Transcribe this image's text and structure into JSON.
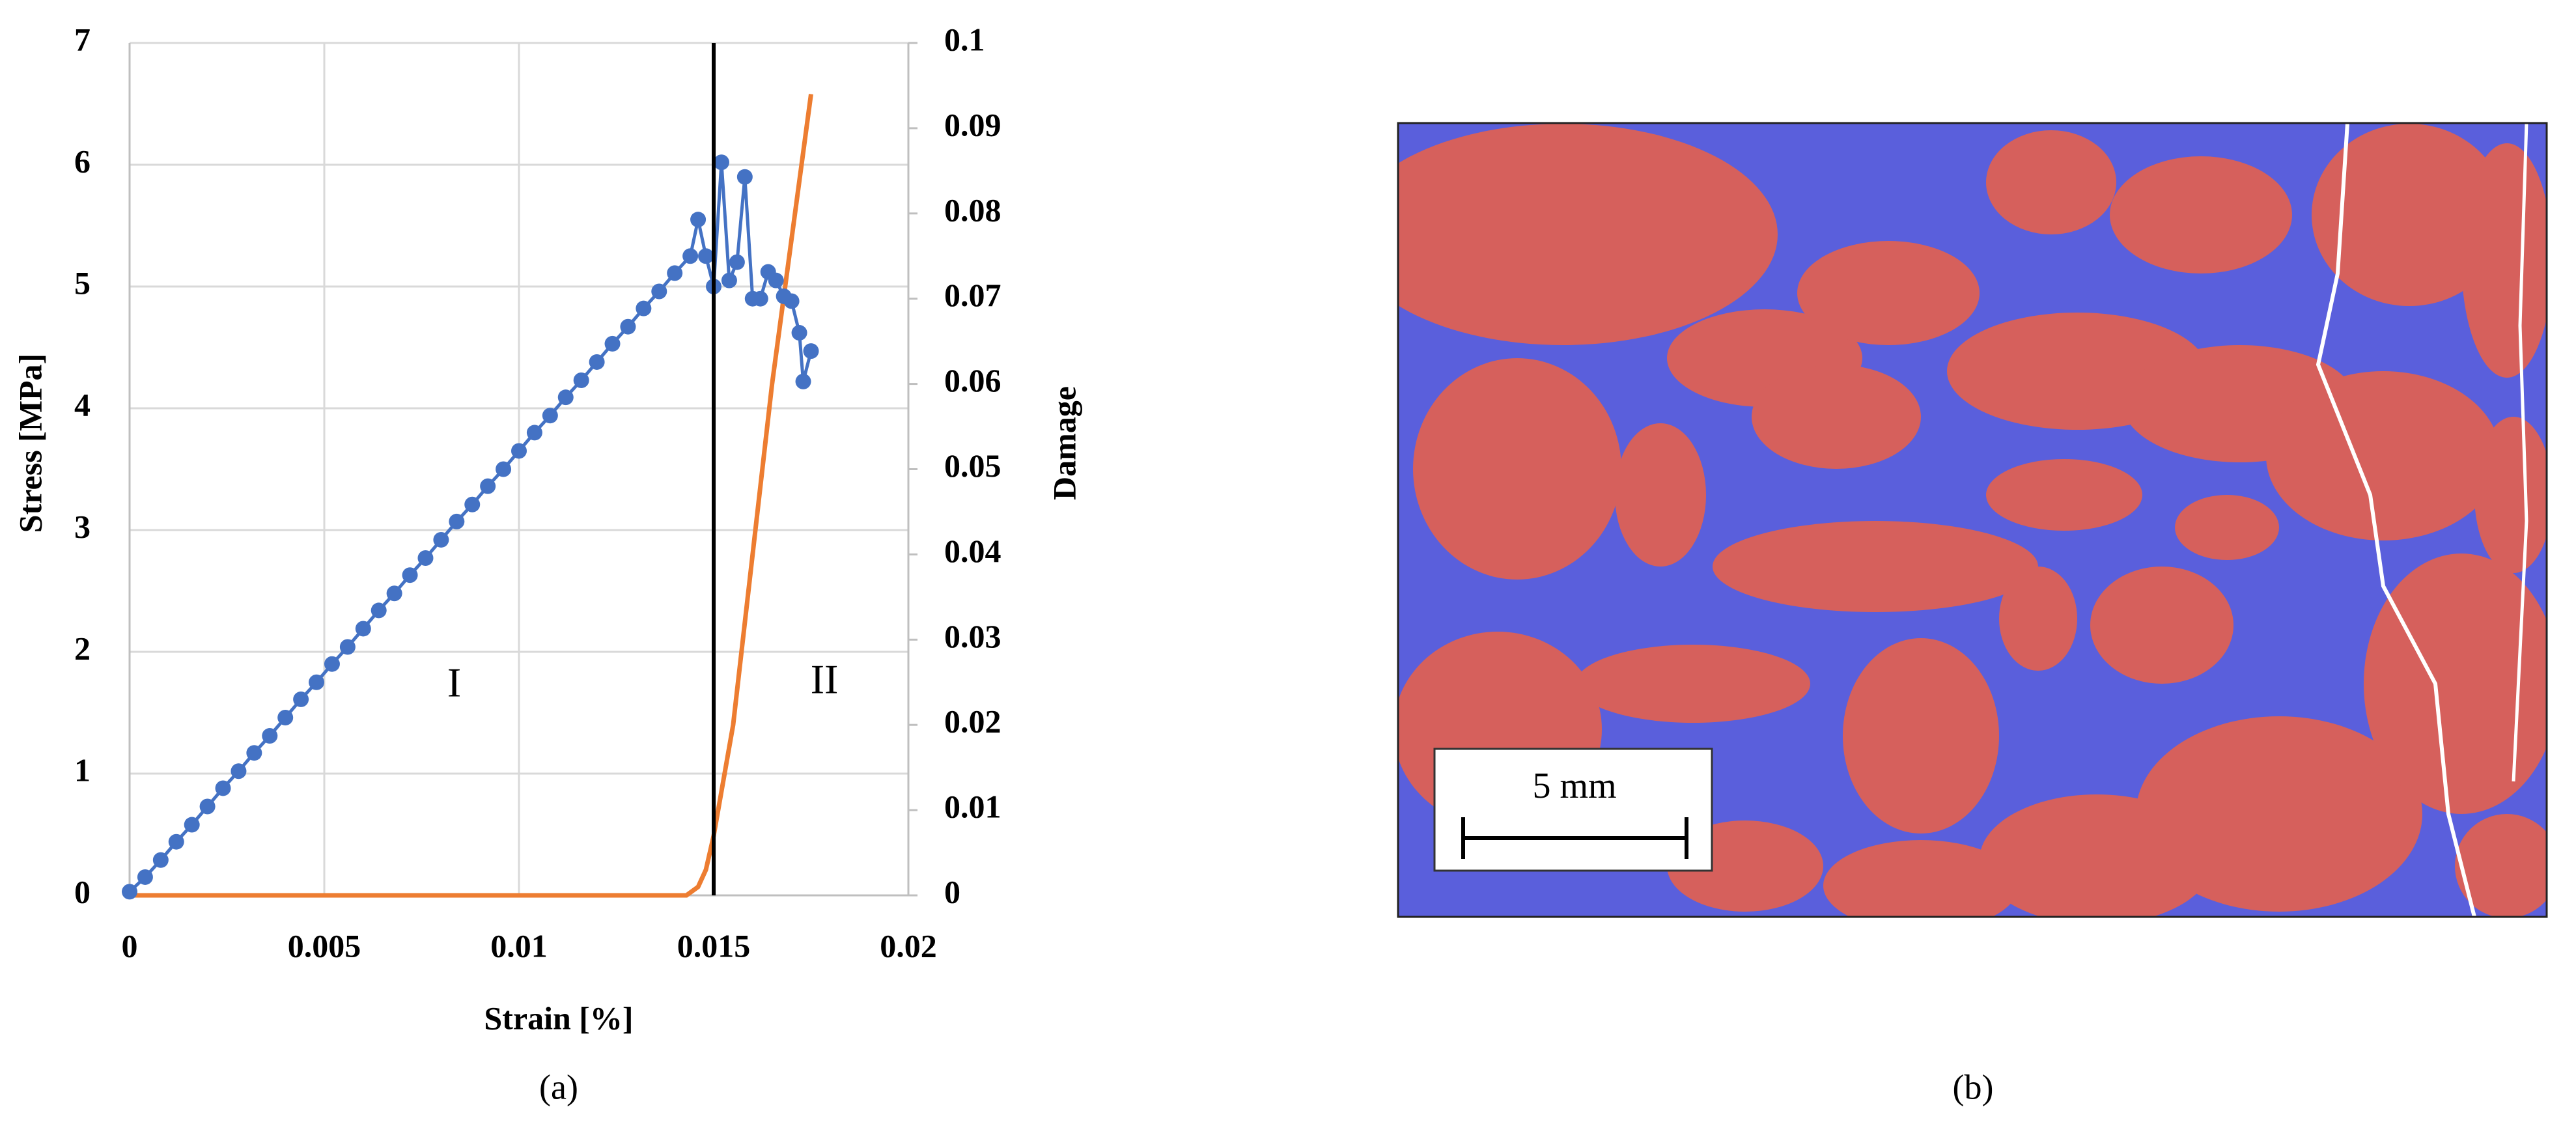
{
  "chart_data": {
    "type": "line",
    "xlabel": "Strain [%]",
    "ylabel": "Stress [MPa]",
    "y2label": "Damage",
    "xlim": [
      0,
      0.02
    ],
    "xticks": [
      0,
      0.005,
      0.01,
      0.015,
      0.02
    ],
    "ylim": [
      0,
      7
    ],
    "yticks": [
      0,
      1,
      2,
      3,
      4,
      5,
      6,
      7
    ],
    "y2lim": [
      0,
      0.1
    ],
    "y2ticks": [
      0,
      0.01,
      0.02,
      0.03,
      0.04,
      0.05,
      0.06,
      0.07,
      0.08,
      0.09,
      0.1
    ],
    "grid": true,
    "vline": 0.015,
    "annotations": [
      "I",
      "II"
    ],
    "series": [
      {
        "color": "#4472c4",
        "markers": true,
        "x": [
          0,
          0.0004,
          0.0008,
          0.0012,
          0.0016,
          0.002,
          0.0024,
          0.0028,
          0.0032,
          0.0036,
          0.004,
          0.0044,
          0.0048,
          0.0052,
          0.0056,
          0.006,
          0.0064,
          0.0068,
          0.0072,
          0.0076,
          0.008,
          0.0084,
          0.0088,
          0.0092,
          0.0096,
          0.01,
          0.0104,
          0.0108,
          0.0112,
          0.0116,
          0.012,
          0.0124,
          0.0128,
          0.0132,
          0.0136,
          0.014,
          0.0144,
          0.0146,
          0.0148,
          0.015,
          0.0152,
          0.0154,
          0.0156,
          0.0158,
          0.016,
          0.0162,
          0.0164,
          0.0166,
          0.0168,
          0.017,
          0.0172,
          0.0173,
          0.0175
        ],
        "values": [
          0.03,
          0.15,
          0.29,
          0.44,
          0.58,
          0.73,
          0.88,
          1.02,
          1.17,
          1.31,
          1.46,
          1.61,
          1.75,
          1.9,
          2.04,
          2.19,
          2.34,
          2.48,
          2.63,
          2.77,
          2.92,
          3.07,
          3.21,
          3.36,
          3.5,
          3.65,
          3.8,
          3.94,
          4.09,
          4.23,
          4.38,
          4.53,
          4.67,
          4.82,
          4.96,
          5.11,
          5.25,
          5.55,
          5.25,
          5.0,
          6.02,
          5.05,
          5.2,
          5.9,
          4.9,
          4.9,
          5.12,
          5.05,
          4.92,
          4.88,
          4.62,
          4.22,
          4.47
        ]
      },
      {
        "color": "#ed7d31",
        "axis": "y2",
        "x": [
          0,
          0.0143,
          0.0146,
          0.0148,
          0.015,
          0.0155,
          0.016,
          0.0165,
          0.017,
          0.0175
        ],
        "values": [
          0,
          0,
          0.001,
          0.003,
          0.007,
          0.02,
          0.04,
          0.06,
          0.077,
          0.094
        ]
      }
    ]
  },
  "captions": [
    "(a)",
    "(b)"
  ],
  "panel_b": {
    "scale_bar_label": "5 mm"
  }
}
